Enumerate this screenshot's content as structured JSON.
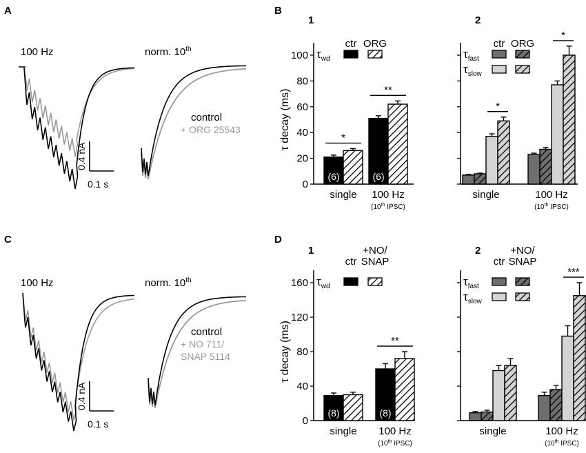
{
  "colors": {
    "black": "#000000",
    "gray_trace": "#999999",
    "light_bar": "#d4d4d4",
    "dark_bar": "#6e6e6e",
    "gray_text": "#9a9a9a"
  },
  "panel_letters": {
    "A": "A",
    "B": "B",
    "C": "C",
    "D": "D"
  },
  "panel_numbers": {
    "B1": "1",
    "B2": "2",
    "D1": "1",
    "D2": "2"
  },
  "traces": {
    "A": {
      "label_100hz": "100 Hz",
      "label_norm": "norm. 10",
      "label_norm_sup": "th",
      "legend_control": "control",
      "legend_drug": "+ ORG 25543",
      "scale_y": "0.4 nA",
      "scale_x": "0.1 s"
    },
    "C": {
      "label_100hz": "100 Hz",
      "label_norm": "norm. 10",
      "label_norm_sup": "th",
      "legend_control": "control",
      "legend_drug_line1": "+ NO 711/",
      "legend_drug_line2": "SNAP 5114",
      "scale_y": "0.4 nA",
      "scale_x": "0.1 s"
    }
  },
  "chart_data": [
    {
      "id": "B1",
      "type": "bar",
      "ylabel": "τ decay  (ms)",
      "ylim": [
        0,
        100
      ],
      "yticks": [
        "0",
        "20",
        "40",
        "60",
        "80",
        "100"
      ],
      "categories": [
        "single",
        "100 Hz"
      ],
      "category_sublabels": [
        "",
        "(10th IPSC)"
      ],
      "legend_header": [
        "ctr",
        "ORG"
      ],
      "legend_rows": [
        {
          "label": "τ",
          "sub": "wd"
        }
      ],
      "series": [
        {
          "name": "ctr",
          "values": [
            21,
            51
          ],
          "errors": [
            1.5,
            2
          ]
        },
        {
          "name": "ORG",
          "values": [
            26,
            62
          ],
          "errors": [
            1.5,
            2.5
          ]
        }
      ],
      "n_labels": [
        "(6)",
        "(6)"
      ],
      "significance": [
        "*",
        "**"
      ]
    },
    {
      "id": "B2",
      "type": "bar",
      "ylim": [
        0,
        100
      ],
      "categories": [
        "single",
        "100 Hz"
      ],
      "category_sublabels": [
        "",
        "(10th IPSC)"
      ],
      "legend_header": [
        "ctr",
        "ORG"
      ],
      "legend_rows": [
        {
          "label": "τ",
          "sub": "fast"
        },
        {
          "label": "τ",
          "sub": "slow"
        }
      ],
      "series": [
        {
          "name": "τfast ctr",
          "values": [
            7,
            23
          ],
          "errors": [
            0.5,
            1
          ]
        },
        {
          "name": "τfast ORG",
          "values": [
            8,
            27
          ],
          "errors": [
            0.5,
            1.5
          ]
        },
        {
          "name": "τslow ctr",
          "values": [
            37,
            77
          ],
          "errors": [
            2,
            3
          ]
        },
        {
          "name": "τslow ORG",
          "values": [
            49,
            100
          ],
          "errors": [
            3,
            7
          ]
        }
      ],
      "significance": [
        "*",
        "*"
      ]
    },
    {
      "id": "D1",
      "type": "bar",
      "ylabel": "τ decay  (ms)",
      "ylim": [
        0,
        160
      ],
      "yticks": [
        "0",
        "40",
        "80",
        "120",
        "160"
      ],
      "categories": [
        "single",
        "100 Hz"
      ],
      "category_sublabels": [
        "",
        "(10th IPSC)"
      ],
      "legend_header": [
        "ctr",
        "+NO/",
        "SNAP"
      ],
      "legend_rows": [
        {
          "label": "τ",
          "sub": "wd"
        }
      ],
      "series": [
        {
          "name": "ctr",
          "values": [
            29,
            60
          ],
          "errors": [
            3,
            6
          ]
        },
        {
          "name": "+NO/SNAP",
          "values": [
            30,
            72
          ],
          "errors": [
            3,
            8
          ]
        }
      ],
      "n_labels": [
        "(8)",
        "(8)"
      ],
      "significance": [
        "**"
      ]
    },
    {
      "id": "D2",
      "type": "bar",
      "ylim": [
        0,
        160
      ],
      "categories": [
        "single",
        "100 Hz"
      ],
      "category_sublabels": [
        "",
        "(10th IPSC)"
      ],
      "legend_header": [
        "ctr",
        "+NO/",
        "SNAP"
      ],
      "legend_rows": [
        {
          "label": "τ",
          "sub": "fast"
        },
        {
          "label": "τ",
          "sub": "slow"
        }
      ],
      "series": [
        {
          "name": "τfast ctr",
          "values": [
            9,
            29
          ],
          "errors": [
            1.5,
            4
          ]
        },
        {
          "name": "τfast NO/SNAP",
          "values": [
            10,
            36
          ],
          "errors": [
            2,
            5
          ]
        },
        {
          "name": "τslow ctr",
          "values": [
            58,
            98
          ],
          "errors": [
            6,
            12
          ]
        },
        {
          "name": "τslow NO/SNAP",
          "values": [
            64,
            145
          ],
          "errors": [
            8,
            15
          ]
        }
      ],
      "significance": [
        "***"
      ]
    }
  ]
}
